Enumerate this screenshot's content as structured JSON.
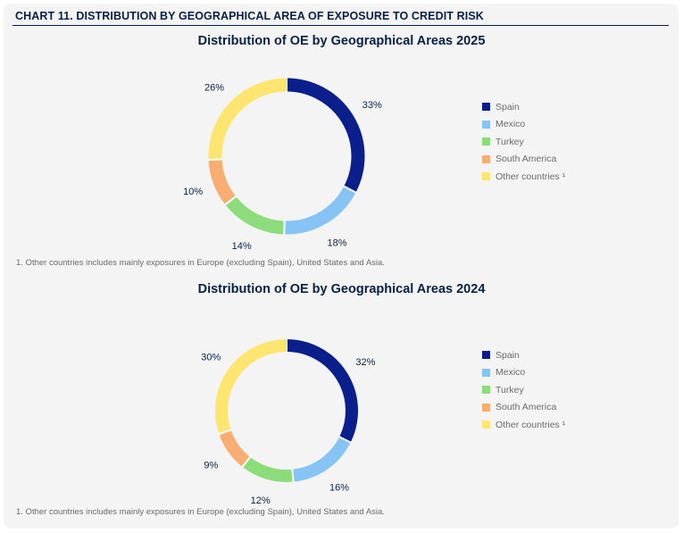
{
  "header": {
    "title": "CHART 11. DISTRIBUTION BY GEOGRAPHICAL AREA OF EXPOSURE TO CREDIT RISK"
  },
  "colors": {
    "Spain": "#0a1e8c",
    "Mexico": "#85c4f5",
    "Turkey": "#8ddc7c",
    "South America": "#f8ae72",
    "Other countries": "#fee56f"
  },
  "chart_data": [
    {
      "type": "pie",
      "variant": "donut",
      "title": "Distribution of OE by Geographical Areas 2025",
      "categories": [
        "Spain",
        "Mexico",
        "Turkey",
        "South America",
        "Other countries"
      ],
      "values": [
        33,
        18,
        14,
        10,
        26
      ],
      "value_labels": [
        "33%",
        "18%",
        "14%",
        "10%",
        "26%"
      ],
      "legend": [
        "Spain",
        "Mexico",
        "Turkey",
        "South America",
        "Other countries ¹"
      ],
      "legend_position": "right",
      "footnote": "1. Other countries includes mainly exposures in Europe (excluding Spain), United States and Asia."
    },
    {
      "type": "pie",
      "variant": "donut",
      "title": "Distribution of OE by Geographical Areas 2024",
      "categories": [
        "Spain",
        "Mexico",
        "Turkey",
        "South America",
        "Other countries"
      ],
      "values": [
        32,
        16,
        12,
        9,
        30
      ],
      "value_labels": [
        "32%",
        "16%",
        "12%",
        "9%",
        "30%"
      ],
      "legend": [
        "Spain",
        "Mexico",
        "Turkey",
        "South America",
        "Other countries ¹"
      ],
      "legend_position": "right",
      "footnote": "1. Other countries includes mainly exposures in Europe (excluding Spain), United States and Asia."
    }
  ]
}
